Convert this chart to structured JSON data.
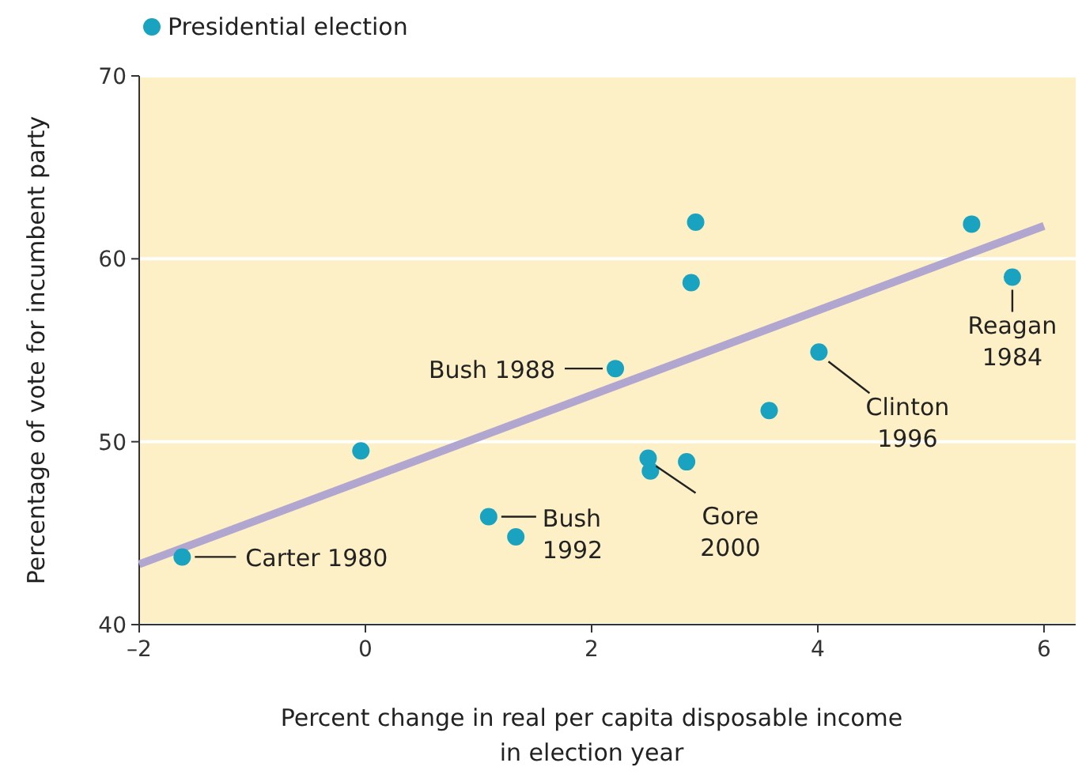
{
  "chart_data": {
    "type": "scatter",
    "xlabel": "Percent change in real per capita disposable income in election year",
    "ylabel": "Percentage of vote for incumbent party",
    "xlim": [
      -2,
      6.28
    ],
    "xticks": [
      {
        "value": -2,
        "label": "–2"
      },
      0,
      2,
      4,
      6
    ],
    "ylim": [
      40,
      70
    ],
    "yticks": [
      40,
      50,
      60,
      70
    ],
    "grid": "y",
    "legend": "top left",
    "marker": "circle",
    "series": [
      {
        "name": "Presidential election",
        "color": "#1aa3c0",
        "x": [
          -1.62,
          -0.04,
          1.09,
          1.33,
          2.21,
          2.5,
          2.52,
          2.84,
          2.88,
          2.92,
          3.57,
          4.01,
          5.36,
          5.72
        ],
        "values": [
          43.7,
          49.5,
          45.9,
          44.8,
          54.0,
          49.1,
          48.4,
          48.9,
          58.7,
          62.0,
          51.7,
          54.9,
          61.9,
          59.0
        ]
      },
      {
        "type": "line",
        "color": "#b0a6d0",
        "x": [
          -2,
          6
        ],
        "values": [
          43.3,
          61.8
        ],
        "marker": "none"
      }
    ],
    "annotations": [
      {
        "text": "Carter 1980",
        "x": -1.62,
        "y": 43.7
      },
      {
        "text": "Bush 1988",
        "x": 2.21,
        "y": 54.0
      },
      {
        "text": "Bush 1992",
        "x": 1.09,
        "y": 45.9
      },
      {
        "text": "Gore 2000",
        "x": 2.5,
        "y": 49.1
      },
      {
        "text": "Clinton 1996",
        "x": 4.01,
        "y": 54.9
      },
      {
        "text": "Reagan 1984",
        "x": 5.72,
        "y": 59.0
      }
    ]
  }
}
